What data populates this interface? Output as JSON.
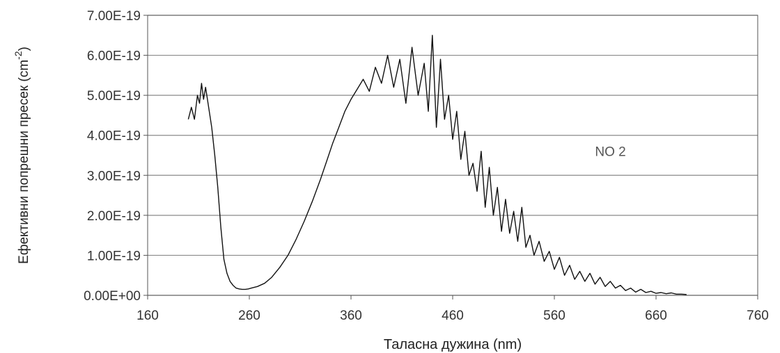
{
  "chart_data": {
    "type": "line",
    "title": "",
    "xlabel": "Таласна дужина (nm)",
    "ylabel_main": "Ефективни попрешни пресек (cm",
    "ylabel_sup": "-2",
    "ylabel_close": ")",
    "xlim": [
      160,
      760
    ],
    "ylim": [
      0,
      7e-19
    ],
    "x_ticks": [
      160,
      260,
      360,
      460,
      560,
      660,
      760
    ],
    "x_tick_labels": [
      "160",
      "260",
      "360",
      "460",
      "560",
      "660",
      "760"
    ],
    "y_ticks": [
      0,
      1e-19,
      2e-19,
      3e-19,
      4e-19,
      5e-19,
      6e-19,
      7e-19
    ],
    "y_tick_labels": [
      "0.00E+00",
      "1.00E-19",
      "2.00E-19",
      "3.00E-19",
      "4.00E-19",
      "5.00E-19",
      "6.00E-19",
      "7.00E-19"
    ],
    "grid": "horizontal",
    "line_color": "#111111",
    "grid_color": "#8a8a8a",
    "annotation": {
      "text": "NO 2",
      "x": 600,
      "y": 3.6e-19
    },
    "series": [
      {
        "name": "",
        "x": [
          200,
          203,
          206,
          209,
          211,
          213,
          215,
          217,
          220,
          223,
          226,
          229,
          232,
          235,
          238,
          241,
          244,
          247,
          250,
          253,
          256,
          259,
          262,
          268,
          275,
          282,
          290,
          298,
          306,
          314,
          322,
          330,
          336,
          342,
          348,
          354,
          360,
          366,
          372,
          378,
          384,
          390,
          396,
          402,
          408,
          414,
          420,
          426,
          432,
          436,
          440,
          444,
          448,
          452,
          456,
          460,
          464,
          468,
          472,
          476,
          480,
          484,
          488,
          492,
          496,
          500,
          504,
          508,
          512,
          516,
          520,
          524,
          528,
          532,
          536,
          540,
          545,
          550,
          555,
          560,
          565,
          570,
          575,
          580,
          585,
          590,
          595,
          600,
          605,
          610,
          615,
          620,
          625,
          630,
          635,
          640,
          645,
          650,
          655,
          660,
          665,
          670,
          675,
          680,
          685,
          690
        ],
        "y": [
          4.4e-19,
          4.7e-19,
          4.4e-19,
          5e-19,
          4.8e-19,
          5.3e-19,
          4.9e-19,
          5.2e-19,
          4.7e-19,
          4.2e-19,
          3.5e-19,
          2.7e-19,
          1.7e-19,
          9e-20,
          5.5e-20,
          3.5e-20,
          2.5e-20,
          1.8e-20,
          1.6e-20,
          1.5e-20,
          1.5e-20,
          1.6e-20,
          1.8e-20,
          2.2e-20,
          3e-20,
          4.5e-20,
          7e-20,
          1e-19,
          1.4e-19,
          1.85e-19,
          2.35e-19,
          2.9e-19,
          3.35e-19,
          3.8e-19,
          4.2e-19,
          4.6e-19,
          4.9e-19,
          5.15e-19,
          5.4e-19,
          5.1e-19,
          5.7e-19,
          5.3e-19,
          6e-19,
          5.2e-19,
          5.9e-19,
          4.8e-19,
          6.2e-19,
          5e-19,
          5.8e-19,
          4.6e-19,
          6.5e-19,
          4.2e-19,
          5.9e-19,
          4.4e-19,
          5e-19,
          3.9e-19,
          4.6e-19,
          3.4e-19,
          4.1e-19,
          3e-19,
          3.3e-19,
          2.6e-19,
          3.6e-19,
          2.2e-19,
          3.2e-19,
          2e-19,
          2.7e-19,
          1.6e-19,
          2.4e-19,
          1.55e-19,
          2.1e-19,
          1.35e-19,
          2.2e-19,
          1.2e-19,
          1.5e-19,
          1e-19,
          1.35e-19,
          8.5e-20,
          1.1e-19,
          6.5e-20,
          9.5e-20,
          5e-20,
          7.5e-20,
          4e-20,
          6e-20,
          3.5e-20,
          5.5e-20,
          2.8e-20,
          4.5e-20,
          2.2e-20,
          3.5e-20,
          1.8e-20,
          2.5e-20,
          1.2e-20,
          1.8e-20,
          8e-21,
          1.5e-20,
          7e-21,
          1e-20,
          5e-21,
          7e-21,
          4e-21,
          6e-21,
          3e-21,
          3e-21,
          2e-21
        ]
      }
    ]
  }
}
